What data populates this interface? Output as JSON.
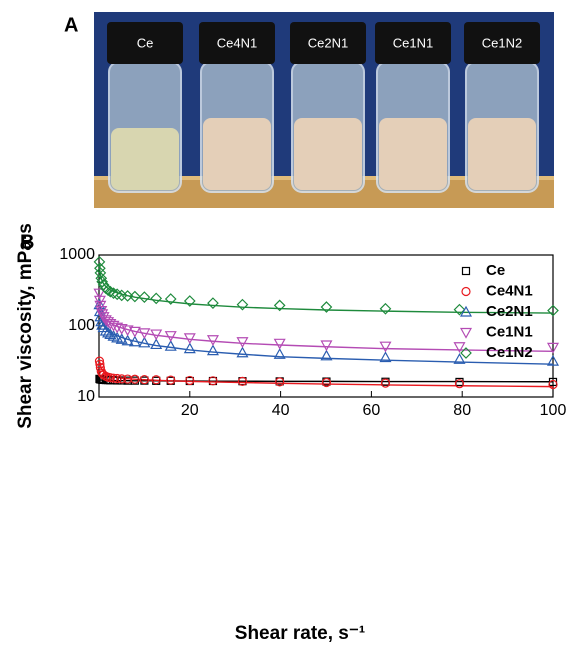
{
  "photo": {
    "panel_label": "A",
    "vial_labels": [
      "Ce",
      "Ce4N1",
      "Ce2N1",
      "Ce1N1",
      "Ce1N2"
    ]
  },
  "chart_data": {
    "type": "scatter",
    "panel_label": "B",
    "xlabel": "Shear rate, s⁻¹",
    "ylabel": "Shear viscosity, mPa·s",
    "xlim": [
      0,
      100
    ],
    "xticks": [
      20,
      40,
      60,
      80,
      100
    ],
    "ylim": [
      10,
      1000
    ],
    "yticks": [
      10,
      100,
      1000
    ],
    "ylog": true,
    "grid": false,
    "legend": "upper right",
    "x": [
      0.1,
      0.2,
      0.3,
      0.5,
      0.7,
      1,
      1.5,
      2,
      2.5,
      3.2,
      4,
      5,
      6.3,
      7.9,
      10,
      12.6,
      15.8,
      20,
      25.1,
      31.6,
      39.8,
      50.1,
      63.1,
      79.4,
      100
    ],
    "series": [
      {
        "name": "Ce",
        "color": "#000000",
        "marker": "square",
        "values": [
          18,
          17.8,
          17.7,
          17.6,
          17.5,
          17.4,
          17.3,
          17.3,
          17.2,
          17.2,
          17.1,
          17.1,
          17,
          17,
          17,
          16.9,
          16.9,
          16.8,
          16.8,
          16.7,
          16.6,
          16.5,
          16.4,
          16.3,
          16.3
        ],
        "fit": [
          17.6,
          17.5,
          17.4,
          17.3,
          17.3,
          17.2,
          17.2,
          17.1,
          17.1,
          17.1,
          17,
          17,
          17,
          16.9,
          16.9,
          16.9,
          16.8,
          16.8,
          16.7,
          16.7,
          16.6,
          16.6,
          16.5,
          16.5,
          16.4
        ]
      },
      {
        "name": "Ce4N1",
        "color": "#e8191f",
        "marker": "circle",
        "values": [
          32,
          29,
          26,
          23,
          21.5,
          20.5,
          19.5,
          19,
          18.7,
          18.4,
          18.2,
          18,
          17.9,
          17.8,
          17.6,
          17.5,
          17.3,
          17.1,
          16.9,
          16.6,
          16.3,
          16,
          15.7,
          15.4,
          15
        ],
        "fit": [
          33,
          30,
          28,
          25.5,
          24,
          22.5,
          21,
          20.2,
          19.7,
          19.2,
          18.8,
          18.4,
          18.1,
          17.8,
          17.5,
          17.2,
          16.9,
          16.6,
          16.3,
          16,
          15.6,
          15.2,
          14.8,
          14.4,
          14
        ]
      },
      {
        "name": "Ce2N1",
        "color": "#2a5db0",
        "marker": "triangle-up",
        "values": [
          200,
          160,
          135,
          115,
          103,
          95,
          85,
          80,
          76,
          72,
          68,
          65,
          62,
          60,
          58,
          55,
          52,
          48,
          45,
          42,
          40,
          38,
          36,
          34,
          32
        ],
        "fit": [
          200,
          160,
          140,
          122,
          112,
          102,
          92,
          86,
          81,
          77,
          73,
          69,
          65,
          61,
          57,
          53,
          50,
          46,
          43,
          40,
          37,
          35,
          33,
          31,
          29
        ]
      },
      {
        "name": "Ce1N1",
        "color": "#b44bb4",
        "marker": "triangle-down",
        "values": [
          290,
          230,
          195,
          165,
          148,
          135,
          122,
          115,
          108,
          102,
          96,
          92,
          88,
          84,
          80,
          77,
          73,
          68,
          64,
          60,
          57,
          54,
          52,
          51,
          50
        ],
        "fit": [
          280,
          220,
          190,
          165,
          150,
          138,
          125,
          116,
          110,
          104,
          99,
          94,
          89,
          84,
          79,
          74,
          70,
          65,
          61,
          57,
          54,
          51,
          48,
          46,
          44
        ]
      },
      {
        "name": "Ce1N2",
        "color": "#1e8a3c",
        "marker": "diamond",
        "values": [
          800,
          650,
          560,
          470,
          420,
          380,
          340,
          320,
          305,
          290,
          280,
          270,
          265,
          260,
          255,
          245,
          240,
          225,
          210,
          200,
          195,
          185,
          175,
          170,
          165
        ],
        "fit": [
          750,
          600,
          530,
          465,
          430,
          395,
          360,
          338,
          322,
          307,
          293,
          280,
          267,
          255,
          243,
          230,
          218,
          205,
          195,
          184,
          176,
          168,
          162,
          156,
          152
        ]
      }
    ]
  }
}
